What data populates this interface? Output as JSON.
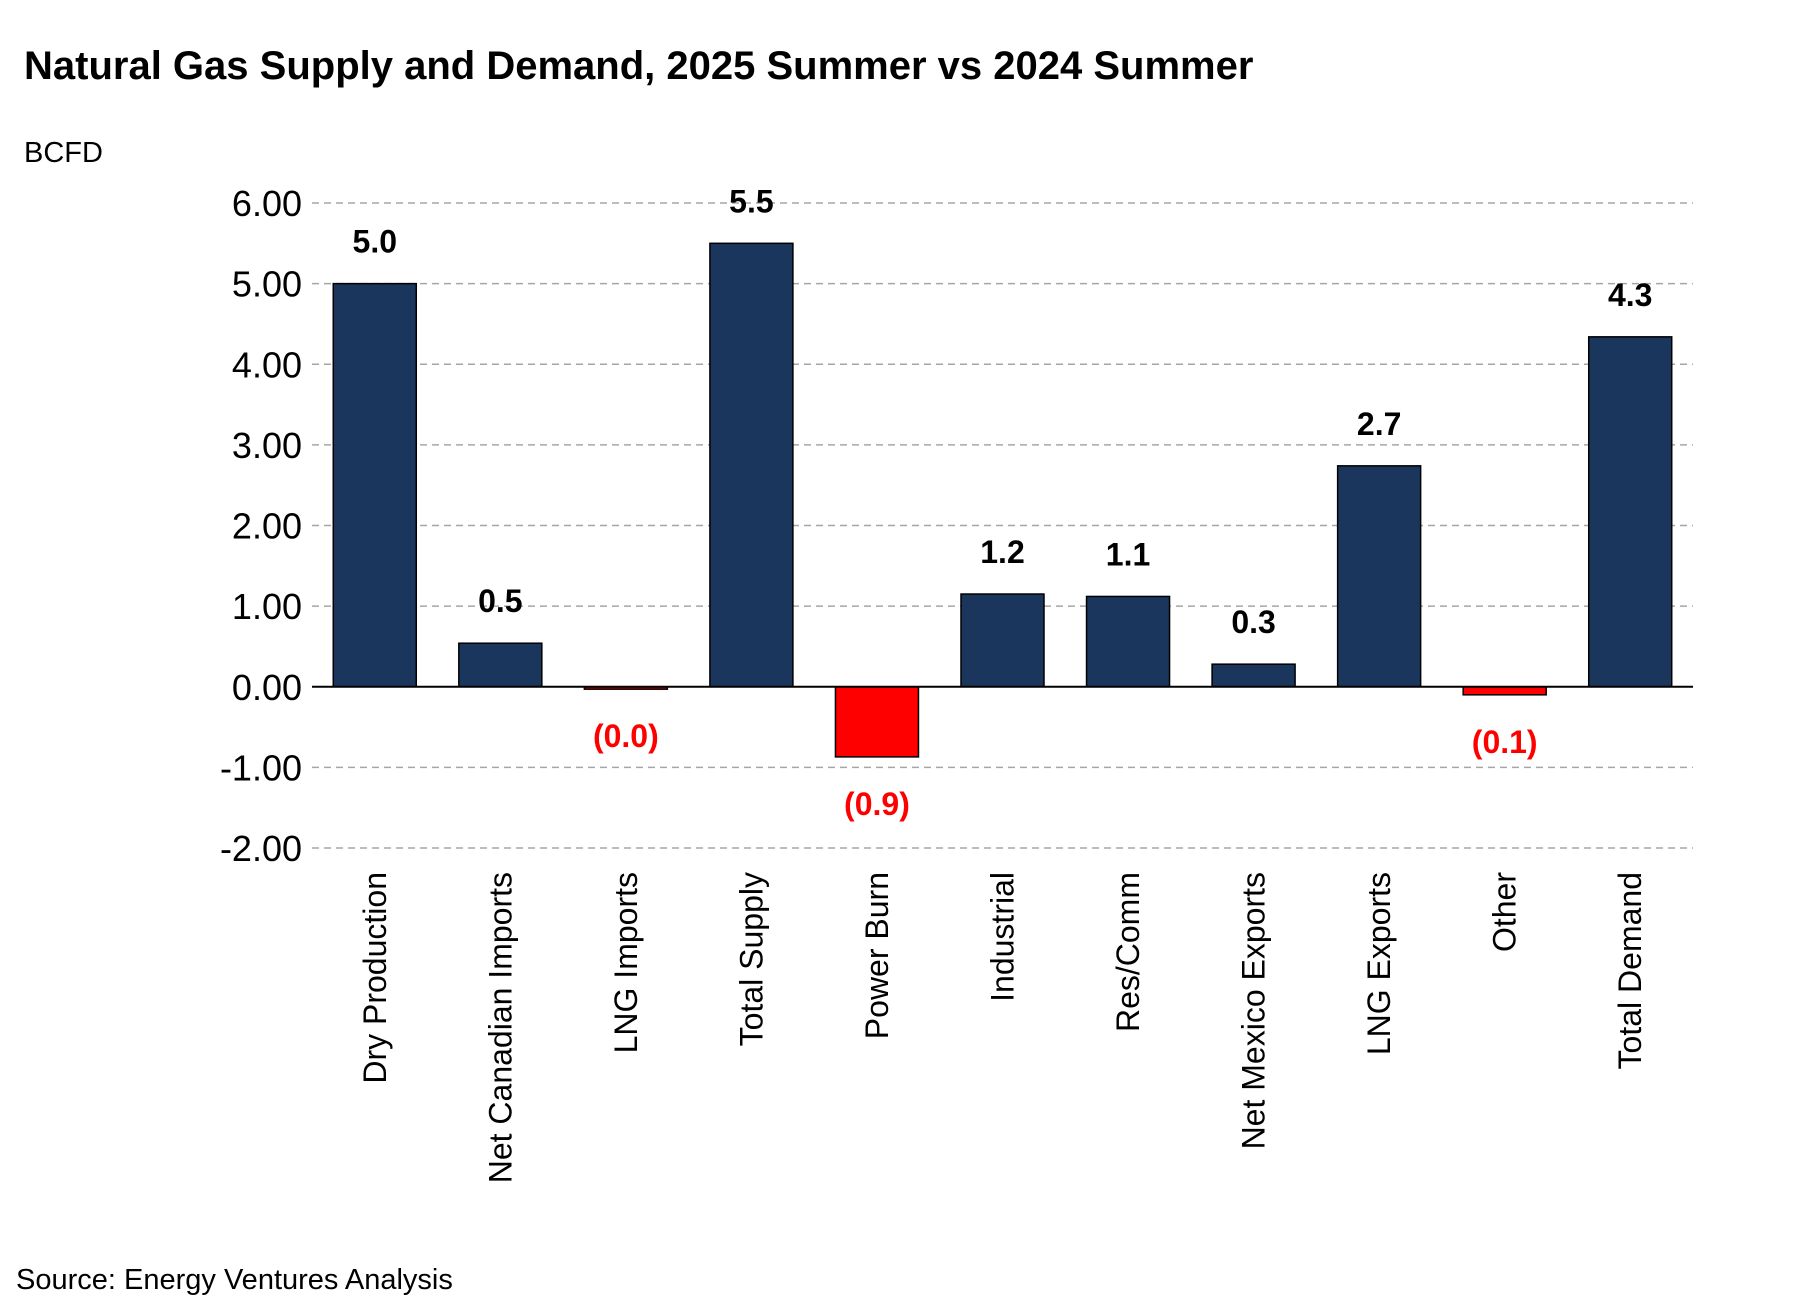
{
  "chart_data": {
    "type": "bar",
    "title": "Natural Gas Supply and Demand, 2025 Summer vs 2024 Summer",
    "ylabel": "BCFD",
    "xlabel": "",
    "ylim": [
      -2,
      6
    ],
    "yticks": [
      "6.00",
      "5.00",
      "4.00",
      "3.00",
      "2.00",
      "1.00",
      "0.00",
      "-1.00",
      "-2.00"
    ],
    "ytick_values": [
      6,
      5,
      4,
      3,
      2,
      1,
      0,
      -1,
      -2
    ],
    "grid": true,
    "legend": "none",
    "categories": [
      "Dry Production",
      "Net Canadian Imports",
      "LNG Imports",
      "Total Supply",
      "Power Burn",
      "Industrial",
      "Res/Comm",
      "Net Mexico Exports",
      "LNG Exports",
      "Other",
      "Total Demand"
    ],
    "values": [
      5.0,
      0.54,
      -0.03,
      5.5,
      -0.87,
      1.15,
      1.12,
      0.28,
      2.74,
      -0.1,
      4.34
    ],
    "data_labels": [
      "5.0",
      "0.5",
      "(0.0)",
      "5.5",
      "(0.9)",
      "1.2",
      "1.1",
      "0.3",
      "2.7",
      "(0.1)",
      "4.3"
    ],
    "source": "Source: Energy Ventures Analysis"
  },
  "colors": {
    "positive_bar": "#1b365d",
    "negative_bar": "#ff0000",
    "negative_label": "#ff0000",
    "positive_label": "#000000",
    "gridline": "#a6a6a6"
  }
}
